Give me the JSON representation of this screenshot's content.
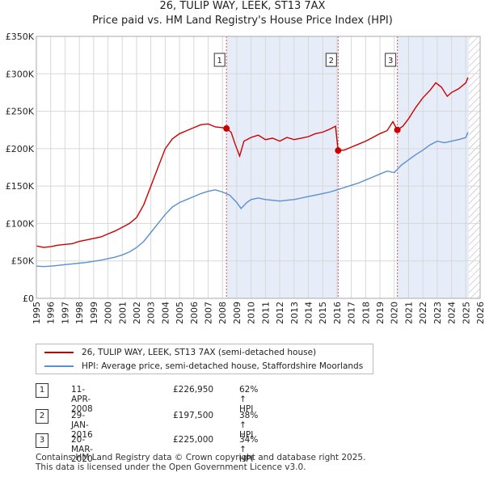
{
  "title": "26, TULIP WAY, LEEK, ST13 7AX",
  "subtitle": "Price paid vs. HM Land Registry's House Price Index (HPI)",
  "legend": {
    "series1_label": "26, TULIP WAY, LEEK, ST13 7AX (semi-detached house)",
    "series2_label": "HPI: Average price, semi-detached house, Staffordshire Moorlands"
  },
  "transactions": [
    {
      "num": "1",
      "date": "11-APR-2008",
      "price": "£226,950",
      "hpi": "62% ↑ HPI"
    },
    {
      "num": "2",
      "date": "29-JAN-2016",
      "price": "£197,500",
      "hpi": "38% ↑ HPI"
    },
    {
      "num": "3",
      "date": "20-MAR-2020",
      "price": "£225,000",
      "hpi": "34% ↑ HPI"
    }
  ],
  "footer": {
    "line1": "Contains HM Land Registry data © Crown copyright and database right 2025.",
    "line2": "This data is licensed under the Open Government Licence v3.0."
  },
  "colors": {
    "price_line": "#cc0000",
    "hpi_line": "#5b8fd0",
    "shade": "#e6ecf8",
    "marker_line": "#e05050",
    "future_hatch": "#aaaaaa"
  },
  "chart_data": {
    "type": "line",
    "title": "26, TULIP WAY, LEEK, ST13 7AX",
    "ylabel": "",
    "xlabel": "",
    "xlim": [
      1995,
      2026
    ],
    "ylim": [
      0,
      350000
    ],
    "y_ticks": [
      0,
      50000,
      100000,
      150000,
      200000,
      250000,
      300000,
      350000
    ],
    "y_tick_labels": [
      "£0",
      "£50K",
      "£100K",
      "£150K",
      "£200K",
      "£250K",
      "£300K",
      "£350K"
    ],
    "x_ticks": [
      1995,
      1996,
      1997,
      1998,
      1999,
      2000,
      2001,
      2002,
      2003,
      2004,
      2005,
      2006,
      2007,
      2008,
      2009,
      2010,
      2011,
      2012,
      2013,
      2014,
      2015,
      2016,
      2017,
      2018,
      2019,
      2020,
      2021,
      2022,
      2023,
      2024,
      2025,
      2026
    ],
    "shaded_ranges": [
      [
        2008.28,
        2016.08
      ],
      [
        2020.22,
        2025.2
      ]
    ],
    "future_start": 2025.2,
    "sales": [
      {
        "label": "1",
        "x": 2008.28,
        "y": 226950
      },
      {
        "label": "2",
        "x": 2016.08,
        "y": 197500
      },
      {
        "label": "3",
        "x": 2020.22,
        "y": 225000
      }
    ],
    "series": [
      {
        "name": "26, TULIP WAY, LEEK, ST13 7AX (semi-detached house)",
        "x": [
          1995,
          1995.5,
          1996,
          1996.5,
          1997,
          1997.5,
          1998,
          1998.5,
          1999,
          1999.5,
          2000,
          2000.5,
          2001,
          2001.5,
          2002,
          2002.5,
          2003,
          2003.5,
          2004,
          2004.5,
          2005,
          2005.5,
          2006,
          2006.5,
          2007,
          2007.5,
          2008,
          2008.28,
          2008.6,
          2008.9,
          2009.2,
          2009.5,
          2010,
          2010.5,
          2011,
          2011.5,
          2012,
          2012.5,
          2013,
          2013.5,
          2014,
          2014.5,
          2015,
          2015.5,
          2015.9,
          2016.08,
          2016.5,
          2017,
          2017.5,
          2018,
          2018.5,
          2019,
          2019.5,
          2019.9,
          2020.22,
          2020.6,
          2021,
          2021.5,
          2022,
          2022.5,
          2022.9,
          2023.3,
          2023.7,
          2024,
          2024.5,
          2025,
          2025.15
        ],
        "y": [
          70000,
          68000,
          69000,
          71000,
          72000,
          73000,
          76000,
          78000,
          80000,
          82000,
          86000,
          90000,
          95000,
          100000,
          108000,
          125000,
          150000,
          175000,
          200000,
          213000,
          220000,
          224000,
          228000,
          232000,
          233000,
          229000,
          228000,
          226950,
          222000,
          205000,
          190000,
          210000,
          215000,
          218000,
          212000,
          214000,
          210000,
          215000,
          212000,
          214000,
          216000,
          220000,
          222000,
          226000,
          230000,
          197500,
          198000,
          202000,
          206000,
          210000,
          215000,
          220000,
          224000,
          236000,
          225000,
          230000,
          240000,
          255000,
          268000,
          278000,
          288000,
          282000,
          270000,
          275000,
          280000,
          288000,
          295000
        ]
      },
      {
        "name": "HPI: Average price, semi-detached house, Staffordshire Moorlands",
        "x": [
          1995,
          1995.5,
          1996,
          1996.5,
          1997,
          1997.5,
          1998,
          1998.5,
          1999,
          1999.5,
          2000,
          2000.5,
          2001,
          2001.5,
          2002,
          2002.5,
          2003,
          2003.5,
          2004,
          2004.5,
          2005,
          2005.5,
          2006,
          2006.5,
          2007,
          2007.5,
          2008,
          2008.5,
          2009,
          2009.3,
          2009.7,
          2010,
          2010.5,
          2011,
          2011.5,
          2012,
          2012.5,
          2013,
          2013.5,
          2014,
          2014.5,
          2015,
          2015.5,
          2016,
          2016.5,
          2017,
          2017.5,
          2018,
          2018.5,
          2019,
          2019.5,
          2020,
          2020.5,
          2021,
          2021.5,
          2022,
          2022.5,
          2023,
          2023.5,
          2024,
          2024.5,
          2025,
          2025.15
        ],
        "y": [
          43000,
          42500,
          43000,
          44000,
          45000,
          46000,
          47000,
          48000,
          49500,
          51000,
          53000,
          55000,
          58000,
          62000,
          68000,
          76000,
          88000,
          100000,
          112000,
          122000,
          128000,
          132000,
          136000,
          140000,
          143000,
          145000,
          142000,
          138000,
          128000,
          120000,
          128000,
          132000,
          134000,
          132000,
          131000,
          130000,
          131000,
          132000,
          134000,
          136000,
          138000,
          140000,
          142000,
          145000,
          148000,
          151000,
          154000,
          158000,
          162000,
          166000,
          170000,
          168000,
          178000,
          185000,
          192000,
          198000,
          205000,
          210000,
          208000,
          210000,
          212000,
          215000,
          222000
        ]
      }
    ]
  }
}
